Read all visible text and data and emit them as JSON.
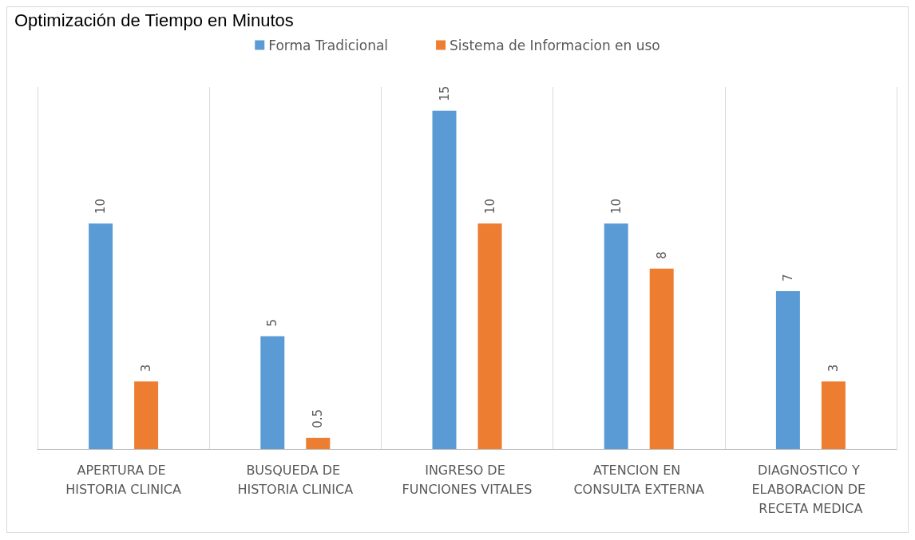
{
  "chart_data": {
    "type": "bar",
    "title": "Optimización de Tiempo en Minutos",
    "categories": [
      "APERTURA DE HISTORIA CLINICA",
      "BUSQUEDA DE HISTORIA CLINICA",
      "INGRESO DE FUNCIONES VITALES",
      "ATENCION EN CONSULTA EXTERNA",
      "DIAGNOSTICO Y ELABORACION DE RECETA MEDICA"
    ],
    "series": [
      {
        "name": "Forma Tradicional",
        "color": "#5b9bd5",
        "values": [
          10,
          5,
          15,
          10,
          7
        ]
      },
      {
        "name": "Sistema de Informacion en uso",
        "color": "#ed7d31",
        "values": [
          3,
          0.5,
          10,
          8,
          3
        ]
      }
    ],
    "data_labels": true,
    "grid": "x",
    "legend": "top"
  }
}
